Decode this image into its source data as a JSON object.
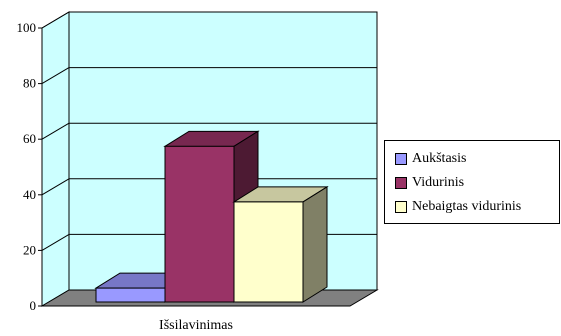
{
  "chart_data": {
    "type": "bar",
    "title": "",
    "xlabel": "",
    "ylabel": "",
    "categories": [
      "Išsilavinimas"
    ],
    "ylim": [
      0,
      100
    ],
    "yticks": [
      0,
      20,
      40,
      60,
      80,
      100
    ],
    "grid": true,
    "legend_position": "right",
    "series": [
      {
        "name": "Aukštasis",
        "values": [
          5
        ],
        "color": "#9999ff"
      },
      {
        "name": "Vidurinis",
        "values": [
          56
        ],
        "color": "#993366"
      },
      {
        "name": "Nebaigtas vidurinis",
        "values": [
          36
        ],
        "color": "#ffffcc"
      }
    ],
    "colors": {
      "plot_area": "#ccffff",
      "floor": "#808080",
      "gridline": "#000000"
    }
  }
}
